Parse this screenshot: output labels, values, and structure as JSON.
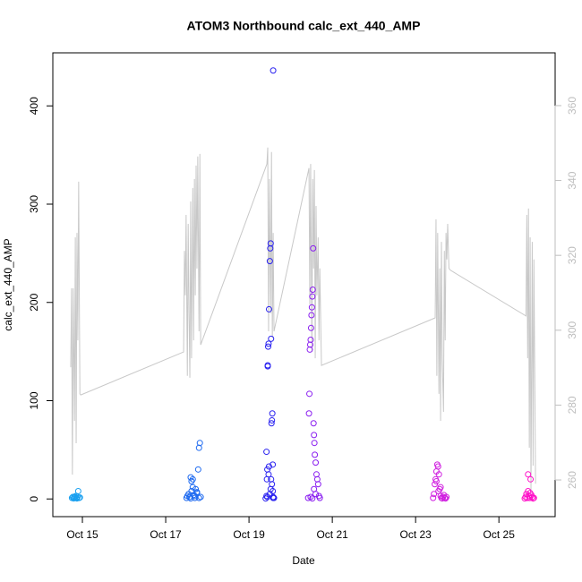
{
  "chart_data": {
    "type": "scatter",
    "title": "ATOM3 Northbound calc_ext_440_AMP",
    "x_label": "Date",
    "y_label": "calc_ext_440_AMP",
    "xlim": [
      14.29,
      26.35
    ],
    "xticks": [
      {
        "value": 15,
        "label": "Oct 15"
      },
      {
        "value": 17,
        "label": "Oct 17"
      },
      {
        "value": 19,
        "label": "Oct 19"
      },
      {
        "value": 21,
        "label": "Oct 21"
      },
      {
        "value": 23,
        "label": "Oct 23"
      },
      {
        "value": 25,
        "label": "Oct 25"
      }
    ],
    "ylim": [
      -18,
      454
    ],
    "yticks": [
      0,
      100,
      200,
      300,
      400
    ],
    "y2lim": [
      250.2,
      374.1
    ],
    "y2ticks": [
      260,
      280,
      300,
      320,
      340,
      360
    ],
    "y2color": "#bebebe",
    "series": [
      {
        "type": "line",
        "axis": "y2",
        "color": "#c8c8c8",
        "x": [
          14.72,
          14.74,
          14.76,
          14.78,
          14.81,
          14.83,
          14.85,
          14.87,
          14.89,
          14.91,
          14.94,
          14.96,
          17.43,
          17.45,
          17.47,
          17.49,
          17.52,
          17.54,
          17.56,
          17.58,
          17.6,
          17.62,
          17.65,
          17.67,
          17.69,
          17.71,
          17.73,
          17.75,
          17.77,
          17.8,
          17.82,
          17.84,
          19.43,
          19.45,
          19.47,
          19.49,
          19.52,
          19.54,
          19.56,
          19.58,
          19.6,
          20.44,
          20.46,
          20.48,
          20.51,
          20.53,
          20.55,
          20.57,
          20.59,
          20.61,
          20.63,
          20.66,
          20.68,
          20.7,
          20.74,
          23.47,
          23.49,
          23.51,
          23.53,
          23.56,
          23.58,
          23.6,
          23.62,
          23.64,
          23.67,
          23.69,
          23.71,
          23.73,
          23.75,
          23.77,
          23.8,
          23.84,
          25.65,
          25.67,
          25.69,
          25.71,
          25.73,
          25.75,
          25.77,
          25.8,
          25.82,
          25.84,
          25.86,
          25.88
        ],
        "values": [
          290.1,
          311.2,
          261.4,
          311.2,
          275.8,
          324.8,
          269.8,
          326.0,
          297.3,
          339.7,
          283.0,
          282.7,
          294.2,
          321.2,
          309.3,
          330.8,
          287.8,
          328.4,
          304.5,
          287.3,
          334.4,
          292.5,
          338.0,
          297.3,
          340.4,
          309.3,
          344.0,
          316.5,
          346.4,
          299.7,
          347.1,
          296.1,
          344.4,
          348.8,
          299.7,
          340.4,
          304.5,
          347.6,
          298.0,
          326.0,
          299.7,
          343.3,
          306.9,
          344.4,
          294.2,
          340.4,
          316.5,
          342.8,
          292.5,
          333.2,
          309.3,
          324.8,
          297.3,
          316.5,
          290.6,
          303.3,
          329.6,
          287.8,
          326.0,
          283.0,
          316.5,
          275.8,
          323.6,
          292.5,
          278.2,
          321.2,
          297.3,
          326.0,
          318.9,
          328.4,
          316.5,
          316.0,
          303.8,
          330.8,
          292.5,
          332.5,
          268.6,
          324.8,
          256.7,
          323.6,
          263.8,
          318.9,
          288.9,
          259.0
        ]
      },
      {
        "color": "#1aa0f0",
        "x": [
          14.75,
          14.77,
          14.79,
          14.8,
          14.82,
          14.84,
          14.85,
          14.87,
          14.88,
          14.9,
          14.92,
          14.94
        ],
        "values": [
          1,
          2,
          0.5,
          1.5,
          2,
          3,
          1,
          0.5,
          2,
          8,
          1,
          1.5
        ]
      },
      {
        "color": "#1e6af0",
        "x": [
          17.5,
          17.52,
          17.55,
          17.57,
          17.6,
          17.62,
          17.65,
          17.67,
          17.7,
          17.72,
          17.75,
          17.78,
          17.8,
          17.82,
          17.84,
          17.6,
          17.65,
          17.7,
          17.75,
          17.8,
          17.62,
          17.58
        ],
        "values": [
          1,
          3,
          5,
          2,
          22,
          8,
          20,
          4,
          1,
          10,
          6,
          30,
          52,
          57,
          2,
          0.5,
          12,
          3,
          7,
          1,
          18,
          2
        ]
      },
      {
        "color": "#2a22f0",
        "x": [
          19.4,
          19.42,
          19.43,
          19.44,
          19.45,
          19.46,
          19.47,
          19.48,
          19.58,
          19.5,
          19.51,
          19.52,
          19.53,
          19.54,
          19.55,
          19.56,
          19.57,
          19.58,
          19.6,
          19.45,
          19.47,
          19.5,
          19.52,
          19.55,
          19.42,
          19.58,
          19.48,
          19.53,
          19.57,
          19.44
        ],
        "values": [
          0.5,
          48,
          20,
          30,
          136,
          155,
          158,
          193,
          436,
          242,
          255,
          260,
          163,
          77,
          80,
          87,
          35,
          2,
          1,
          135,
          25,
          5,
          10,
          15,
          3,
          1,
          33,
          20,
          8,
          2
        ]
      },
      {
        "color": "#8a1ef0",
        "x": [
          20.42,
          20.44,
          20.45,
          20.46,
          20.47,
          20.48,
          20.49,
          20.5,
          20.51,
          20.52,
          20.53,
          20.54,
          20.55,
          20.56,
          20.57,
          20.58,
          20.6,
          20.62,
          20.64,
          20.66,
          20.68,
          20.7,
          20.48,
          20.52,
          20.56,
          20.6
        ],
        "values": [
          1,
          87,
          107,
          152,
          157,
          162,
          174,
          187,
          195,
          206,
          213,
          255,
          77,
          65,
          57,
          45,
          37,
          25,
          20,
          15,
          3,
          1,
          2,
          0.5,
          10,
          5
        ]
      },
      {
        "color": "#d020e0",
        "x": [
          23.42,
          23.44,
          23.46,
          23.48,
          23.5,
          23.52,
          23.54,
          23.56,
          23.58,
          23.6,
          23.62,
          23.64,
          23.66,
          23.68,
          23.7,
          23.72,
          23.74,
          23.5,
          23.55,
          23.6
        ],
        "values": [
          1,
          5,
          15,
          20,
          28,
          35,
          33,
          25,
          10,
          3,
          1,
          0.5,
          2,
          4,
          1,
          0.5,
          2,
          18,
          8,
          12
        ]
      },
      {
        "color": "#ff10c8",
        "x": [
          25.62,
          25.64,
          25.66,
          25.68,
          25.7,
          25.72,
          25.74,
          25.76,
          25.78,
          25.8,
          25.82,
          25.84,
          25.7,
          25.75
        ],
        "values": [
          0.5,
          2,
          5,
          1,
          25,
          3,
          1,
          20,
          4,
          2,
          0.5,
          1,
          8,
          6
        ]
      }
    ]
  }
}
